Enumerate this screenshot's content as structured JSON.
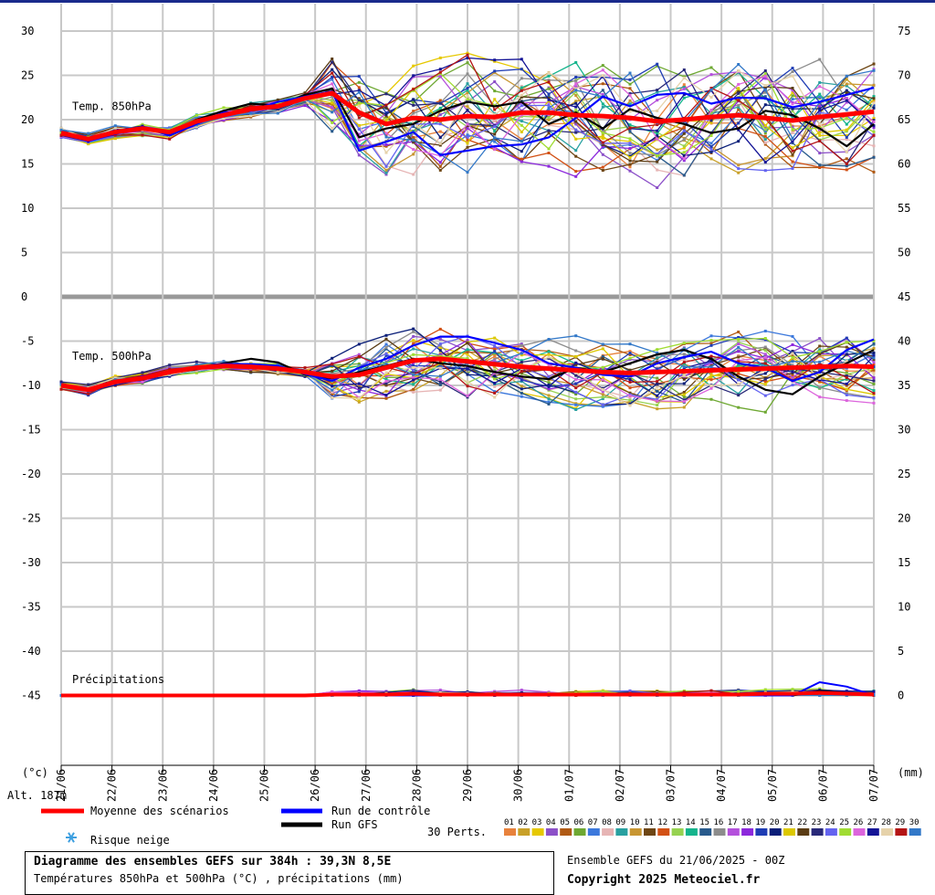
{
  "chart_data": {
    "type": "line",
    "title": "Diagramme des ensembles GEFS sur 384h : 39,3N 8,5E",
    "subtitle": "Températures 850hPa et 500hPa (°C) , précipitations (mm)",
    "run_info": "Ensemble GEFS du 21/06/2025 - 00Z",
    "copyright": "Copyright 2025 Meteociel.fr",
    "left_axis_label": "(°c)",
    "right_axis_label": "(mm)",
    "altitude_label": "Alt. 187m",
    "left_ticks": [
      "30",
      "25",
      "20",
      "15",
      "10",
      "5",
      "0",
      "-5",
      "-10",
      "-15",
      "-20",
      "-25",
      "-30",
      "-35",
      "-40",
      "-45"
    ],
    "right_ticks": [
      "75",
      "70",
      "65",
      "60",
      "55",
      "50",
      "45",
      "40",
      "35",
      "30",
      "25",
      "20",
      "15",
      "10",
      "5",
      "0"
    ],
    "ylim_temp": [
      -45,
      30
    ],
    "ylim_precip": [
      0,
      75
    ],
    "x_labels": [
      "21/06",
      "22/06",
      "23/06",
      "24/06",
      "25/06",
      "26/06",
      "27/06",
      "28/06",
      "29/06",
      "30/06",
      "01/07",
      "02/07",
      "03/07",
      "04/07",
      "05/07",
      "06/07",
      "07/07"
    ],
    "panel_labels": {
      "t850": "Temp. 850hPa",
      "t500": "Temp. 500hPa",
      "precip": "Précipitations"
    },
    "legend": {
      "mean": "Moyenne des scénarios",
      "control": "Run de contrôle",
      "gfs": "Run GFS",
      "snow": "Risque neige",
      "perts": "30 Perts.",
      "pert_ids": [
        "01",
        "02",
        "03",
        "04",
        "05",
        "06",
        "07",
        "08",
        "09",
        "10",
        "11",
        "12",
        "13",
        "14",
        "15",
        "16",
        "17",
        "18",
        "19",
        "20",
        "21",
        "22",
        "23",
        "24",
        "25",
        "26",
        "27",
        "28",
        "29",
        "30"
      ],
      "pert_colors": [
        "#e8823c",
        "#c8a028",
        "#e6c800",
        "#8c50c8",
        "#b05a14",
        "#6ea832",
        "#3c78dc",
        "#e6b4b4",
        "#28a0a0",
        "#c89632",
        "#6e4614",
        "#d25014",
        "#96d250",
        "#14b48c",
        "#285a8c",
        "#8c8c8c",
        "#b450dc",
        "#8c28dc",
        "#1e3cb4",
        "#0a1e78",
        "#dcc800",
        "#5a3c14",
        "#282878",
        "#6464f0",
        "#a0dc32",
        "#dc64dc",
        "#141496",
        "#e6d2aa",
        "#b41414",
        "#3278c8"
      ],
      "mean_color": "#ff0000",
      "control_color": "#0000ff",
      "gfs_color": "#000000"
    },
    "series": [
      {
        "name": "Temp. 850hPa",
        "mean": [
          18.5,
          17.8,
          18.6,
          19.0,
          18.6,
          19.8,
          20.5,
          21.2,
          21.5,
          22.4,
          23.0,
          20.8,
          19.5,
          20.2,
          20.0,
          20.4,
          20.3,
          20.8,
          20.8,
          20.5,
          20.4,
          20.2,
          19.8,
          20.0,
          20.3,
          20.5,
          20.2,
          19.9,
          20.3,
          20.6,
          20.9
        ],
        "control": [
          18.5,
          17.6,
          18.4,
          19.2,
          18.2,
          19.5,
          20.8,
          21.0,
          22.0,
          22.6,
          23.2,
          16.5,
          17.5,
          18.6,
          16.0,
          16.5,
          17.0,
          17.2,
          18.0,
          20.2,
          22.6,
          21.5,
          22.8,
          23.0,
          21.8,
          22.5,
          22.4,
          21.4,
          22.0,
          22.8,
          23.6
        ],
        "gfs": [
          18.5,
          17.9,
          18.6,
          19.1,
          18.4,
          20.0,
          21.0,
          21.8,
          21.6,
          22.8,
          23.5,
          18.0,
          19.0,
          19.5,
          21.0,
          22.0,
          21.5,
          22.0,
          19.5,
          20.8,
          19.0,
          21.2,
          20.2,
          19.5,
          18.5,
          19.0,
          21.0,
          20.5,
          19.0,
          17.0,
          19.5
        ]
      },
      {
        "name": "Temp. 500hPa",
        "mean": [
          -10.0,
          -10.5,
          -9.6,
          -9.2,
          -8.5,
          -8.0,
          -7.8,
          -7.9,
          -8.1,
          -8.5,
          -9.0,
          -8.8,
          -8.0,
          -7.2,
          -7.0,
          -7.3,
          -7.6,
          -7.9,
          -8.1,
          -8.3,
          -8.5,
          -8.6,
          -8.5,
          -8.4,
          -8.3,
          -8.2,
          -8.1,
          -8.0,
          -7.9,
          -7.8,
          -7.9
        ],
        "control": [
          -10.0,
          -10.6,
          -9.7,
          -9.0,
          -8.4,
          -7.9,
          -7.6,
          -7.6,
          -7.8,
          -8.7,
          -9.5,
          -8.0,
          -7.0,
          -5.5,
          -4.5,
          -4.5,
          -5.2,
          -6.0,
          -7.5,
          -8.0,
          -8.8,
          -9.0,
          -7.5,
          -6.8,
          -6.2,
          -7.5,
          -8.0,
          -9.5,
          -8.5,
          -6.0,
          -4.8
        ],
        "gfs": [
          -10.0,
          -10.4,
          -9.5,
          -9.3,
          -8.6,
          -8.2,
          -7.5,
          -7.0,
          -7.4,
          -8.8,
          -9.2,
          -8.5,
          -7.8,
          -7.0,
          -7.5,
          -7.8,
          -8.5,
          -9.0,
          -9.3,
          -8.0,
          -8.5,
          -7.5,
          -6.5,
          -6.0,
          -7.0,
          -9.0,
          -10.5,
          -11.0,
          -9.0,
          -7.5,
          -6.0
        ]
      },
      {
        "name": "Précipitations",
        "mean": [
          0,
          0,
          0,
          0,
          0,
          0,
          0,
          0,
          0,
          0,
          0.1,
          0.1,
          0.1,
          0.2,
          0.1,
          0.1,
          0.1,
          0.1,
          0.1,
          0.1,
          0.1,
          0.1,
          0.1,
          0.1,
          0.1,
          0.1,
          0.2,
          0.2,
          0.3,
          0.2,
          0.1
        ],
        "control": [
          0,
          0,
          0,
          0,
          0,
          0,
          0,
          0,
          0,
          0,
          0,
          0,
          0,
          0,
          0,
          0,
          0,
          0,
          0,
          0,
          0,
          0,
          0,
          0,
          0,
          0,
          0,
          0,
          1.5,
          1,
          0
        ],
        "gfs": [
          0,
          0,
          0,
          0,
          0,
          0,
          0,
          0,
          0,
          0,
          0,
          0,
          0,
          0,
          0,
          0,
          0,
          0,
          0,
          0,
          0,
          0,
          0,
          0,
          0,
          0,
          0,
          0,
          0.5,
          0.3,
          0
        ]
      }
    ],
    "grid": true
  }
}
